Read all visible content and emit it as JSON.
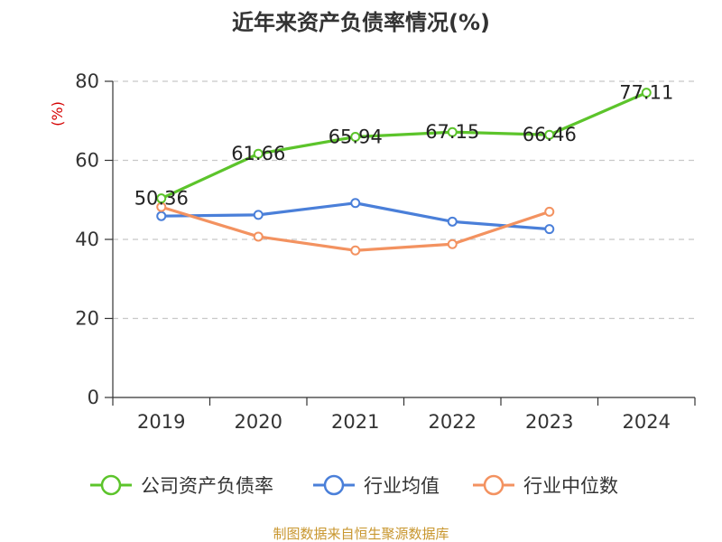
{
  "chart_data": {
    "type": "line",
    "title": "近年来资产负债率情况(%)",
    "ylabel": "(%)",
    "categories": [
      "2019",
      "2020",
      "2021",
      "2022",
      "2023",
      "2024"
    ],
    "ylim": [
      0,
      80
    ],
    "yticks": [
      0,
      20,
      40,
      60,
      80
    ],
    "grid": true,
    "legend_position": "bottom",
    "series": [
      {
        "name": "公司资产负债率",
        "color": "#5cc42b",
        "values": [
          50.36,
          61.66,
          65.94,
          67.15,
          66.46,
          77.11
        ],
        "labels": [
          "50.36",
          "61.66",
          "65.94",
          "67.15",
          "66.46",
          "77.11"
        ]
      },
      {
        "name": "行业均值",
        "color": "#4a7fd9",
        "values": [
          45.9,
          46.2,
          49.2,
          44.5,
          42.6,
          null
        ]
      },
      {
        "name": "行业中位数",
        "color": "#f39260",
        "values": [
          48.2,
          40.7,
          37.2,
          38.8,
          47.0,
          null
        ]
      }
    ]
  },
  "source": "制图数据来自恒生聚源数据库"
}
